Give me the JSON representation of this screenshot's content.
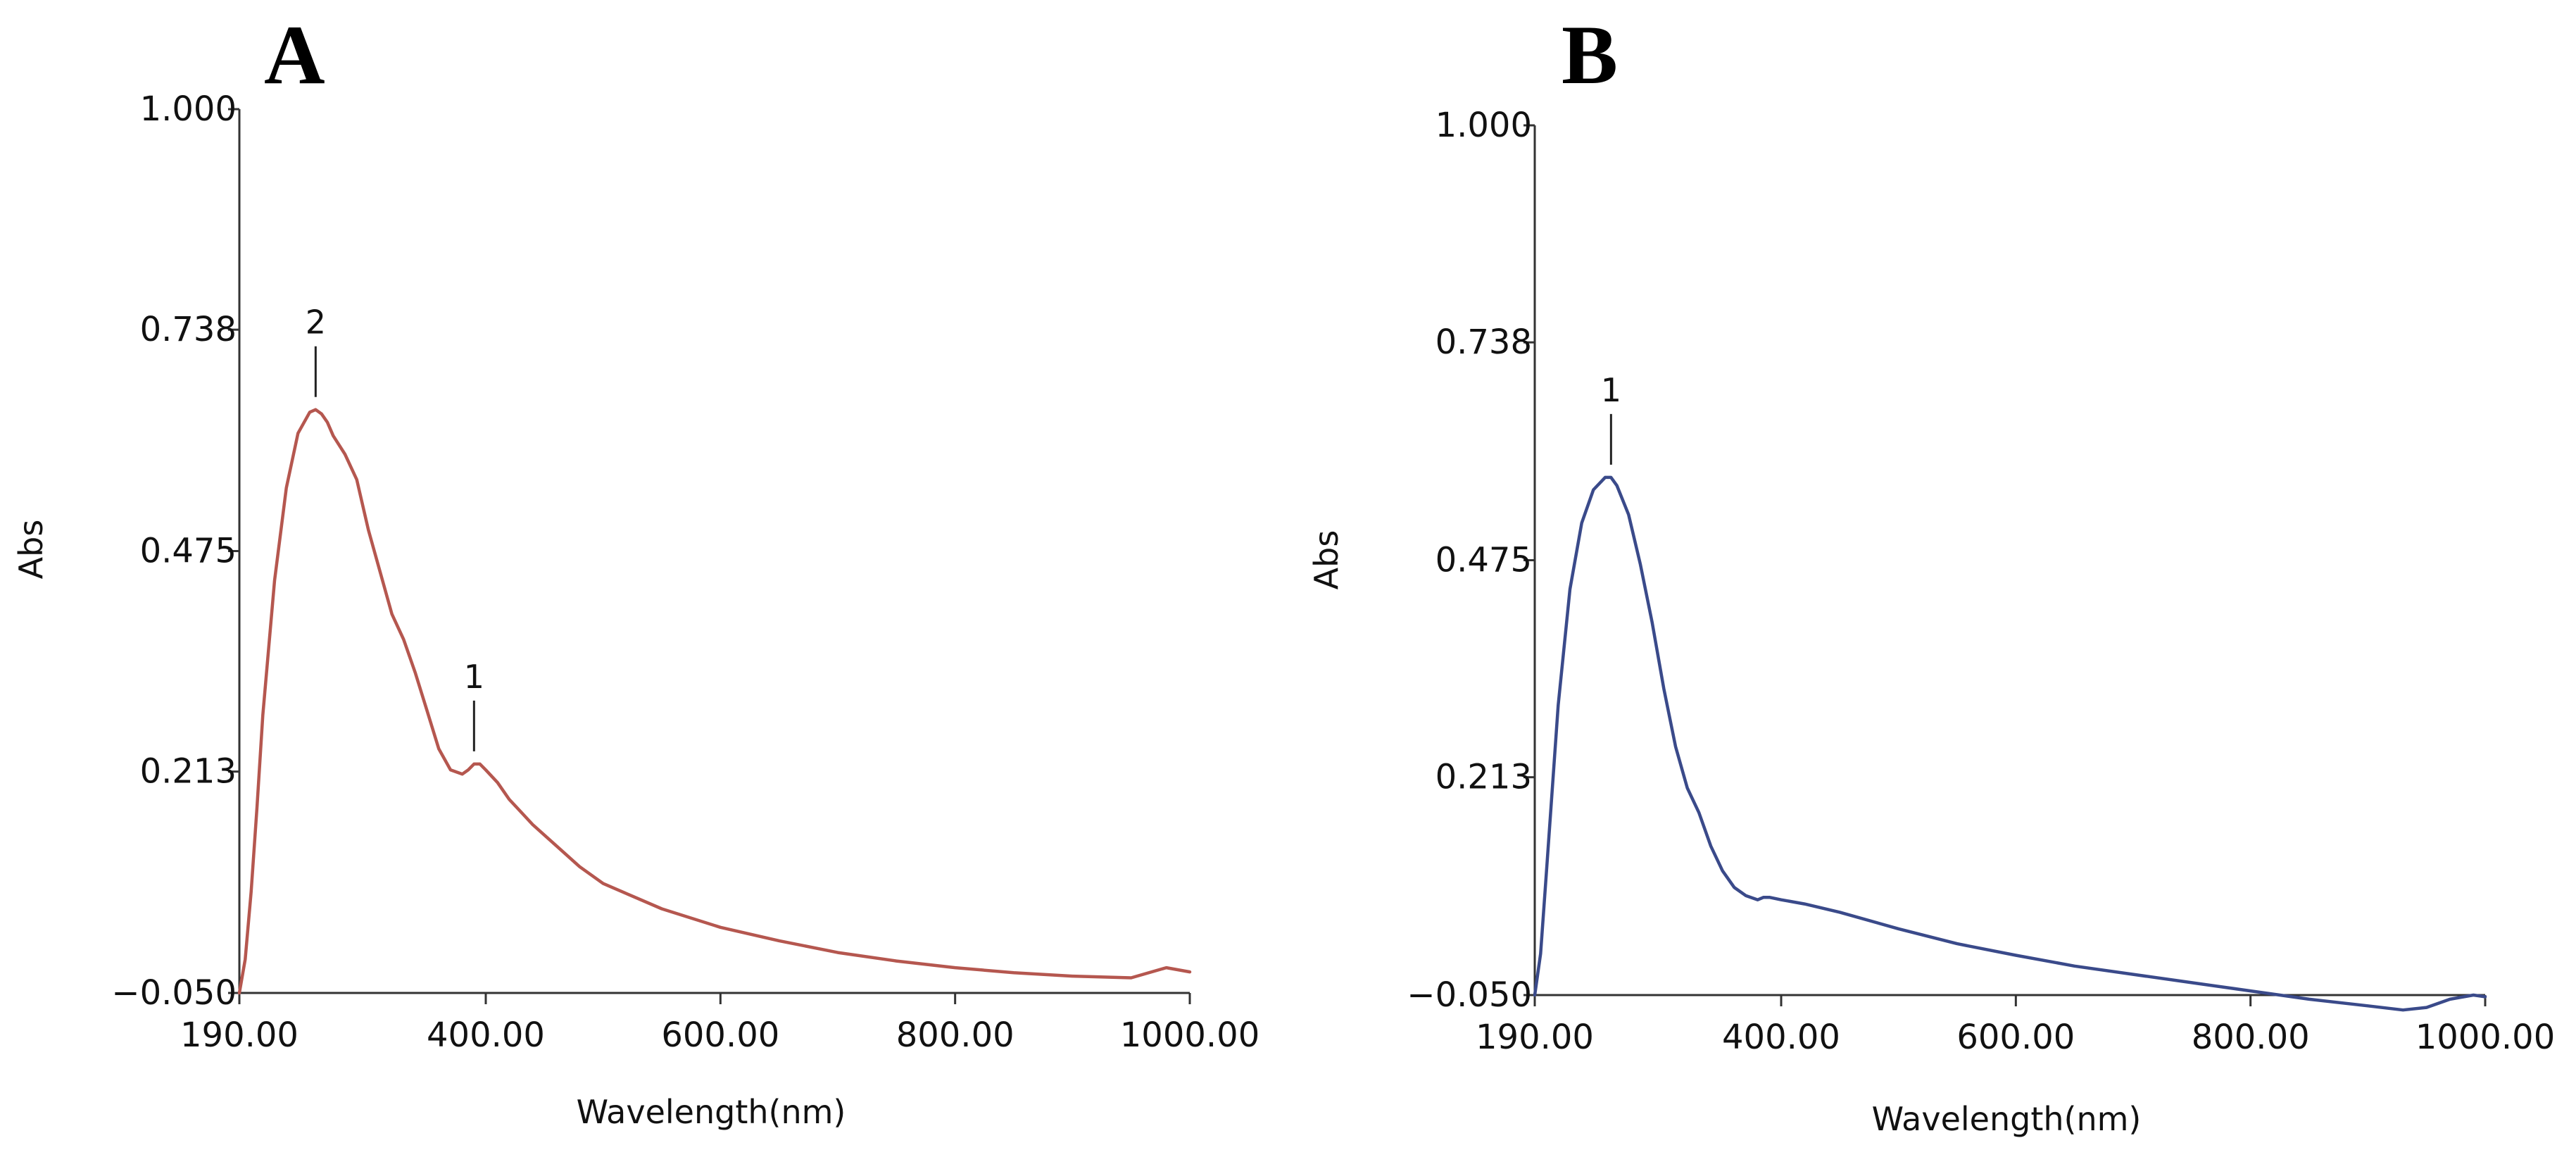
{
  "chart_data": [
    {
      "panel": "A",
      "type": "line",
      "xlabel": "Wavelength(nm)",
      "ylabel": "Abs",
      "xlim": [
        190,
        1000
      ],
      "ylim": [
        -0.05,
        1.0
      ],
      "x_ticks": [
        "190.00",
        "400.00",
        "600.00",
        "800.00",
        "1000.00"
      ],
      "x_tick_values": [
        190,
        400,
        600,
        800,
        1000
      ],
      "y_ticks": [
        "1.000",
        "0.738",
        "0.475",
        "0.213",
        "−0.050"
      ],
      "y_tick_values": [
        1.0,
        0.738,
        0.475,
        0.213,
        -0.05
      ],
      "color": "#b5574f",
      "series": [
        {
          "name": "A",
          "x": [
            190,
            195,
            200,
            205,
            210,
            220,
            230,
            240,
            250,
            255,
            260,
            265,
            270,
            280,
            290,
            300,
            310,
            320,
            330,
            340,
            350,
            360,
            370,
            380,
            385,
            390,
            395,
            400,
            410,
            420,
            430,
            440,
            460,
            480,
            500,
            550,
            600,
            650,
            700,
            750,
            800,
            850,
            900,
            950,
            980,
            1000
          ],
          "y": [
            -0.05,
            -0.01,
            0.07,
            0.17,
            0.28,
            0.44,
            0.55,
            0.615,
            0.64,
            0.643,
            0.638,
            0.628,
            0.612,
            0.59,
            0.56,
            0.5,
            0.45,
            0.4,
            0.37,
            0.33,
            0.285,
            0.24,
            0.215,
            0.21,
            0.215,
            0.222,
            0.222,
            0.215,
            0.2,
            0.18,
            0.165,
            0.15,
            0.125,
            0.1,
            0.08,
            0.05,
            0.028,
            0.012,
            -0.002,
            -0.012,
            -0.02,
            -0.026,
            -0.03,
            -0.032,
            -0.02,
            -0.025
          ]
        }
      ],
      "peaks": [
        {
          "label": "2",
          "x": 255
        },
        {
          "label": "1",
          "x": 390
        }
      ]
    },
    {
      "panel": "B",
      "type": "line",
      "xlabel": "Wavelength(nm)",
      "ylabel": "Abs",
      "xlim": [
        190,
        1000
      ],
      "ylim": [
        -0.05,
        1.0
      ],
      "x_ticks": [
        "190.00",
        "400.00",
        "600.00",
        "800.00",
        "1000.00"
      ],
      "x_tick_values": [
        190,
        400,
        600,
        800,
        1000
      ],
      "y_ticks": [
        "1.000",
        "0.738",
        "0.475",
        "0.213",
        "−0.050"
      ],
      "y_tick_values": [
        1.0,
        0.738,
        0.475,
        0.213,
        -0.05
      ],
      "color": "#3a4a8a",
      "series": [
        {
          "name": "B",
          "x": [
            190,
            195,
            200,
            210,
            220,
            230,
            240,
            250,
            255,
            260,
            270,
            280,
            290,
            300,
            310,
            320,
            330,
            340,
            350,
            360,
            370,
            380,
            385,
            390,
            400,
            420,
            450,
            500,
            550,
            600,
            650,
            700,
            750,
            800,
            850,
            900,
            930,
            950,
            970,
            990,
            1000
          ],
          "y": [
            -0.05,
            0.0,
            0.1,
            0.3,
            0.44,
            0.52,
            0.56,
            0.575,
            0.575,
            0.565,
            0.53,
            0.47,
            0.4,
            0.32,
            0.25,
            0.2,
            0.17,
            0.13,
            0.1,
            0.08,
            0.07,
            0.065,
            0.068,
            0.068,
            0.065,
            0.06,
            0.05,
            0.03,
            0.012,
            -0.002,
            -0.015,
            -0.025,
            -0.035,
            -0.045,
            -0.055,
            -0.063,
            -0.068,
            -0.065,
            -0.055,
            -0.05,
            -0.052
          ]
        }
      ],
      "peaks": [
        {
          "label": "1",
          "x": 255
        }
      ]
    }
  ]
}
